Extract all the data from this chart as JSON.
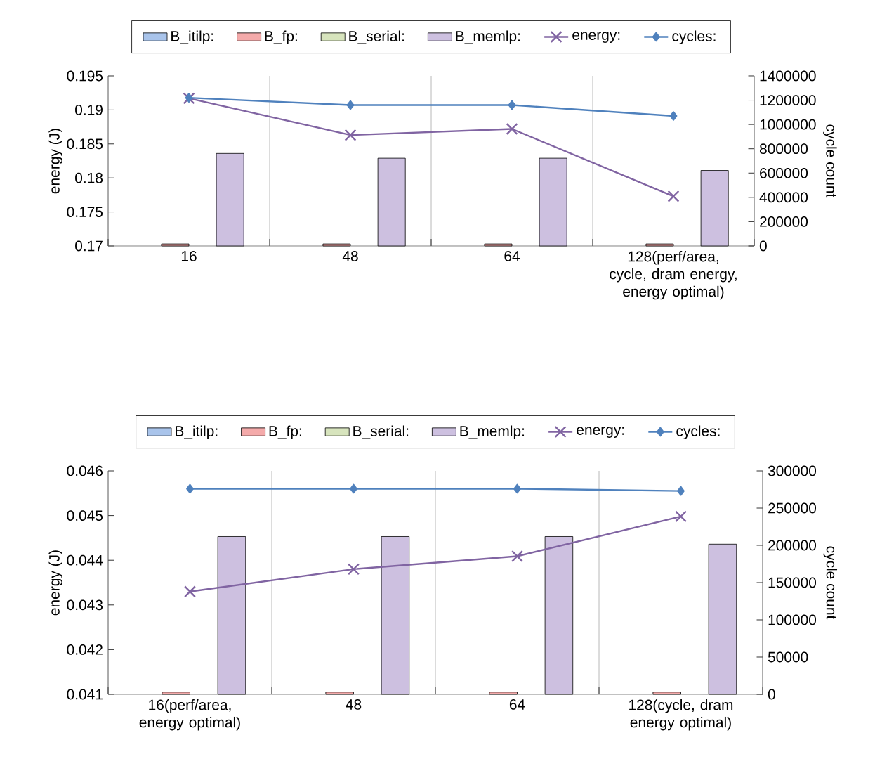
{
  "chart_data": [
    {
      "type": "bar",
      "categories": [
        "16",
        "48",
        "64",
        "128(perf/area, cycle, dram energy, energy optimal)"
      ],
      "ylabel": "energy (J)",
      "y2label": "cycle count",
      "ylim": [
        0.17,
        0.195
      ],
      "yticks": [
        0.17,
        0.175,
        0.18,
        0.185,
        0.19,
        0.195
      ],
      "y2lim": [
        0,
        1400000
      ],
      "y2ticks": [
        0,
        200000,
        400000,
        600000,
        800000,
        1000000,
        1200000,
        1400000
      ],
      "grid": "x",
      "legend": "top",
      "series": [
        {
          "name": "B_itilp:",
          "color": "#a9c4eb",
          "values": [
            null,
            null,
            null,
            null
          ]
        },
        {
          "name": "B_fp:",
          "color": "#f4aaaa",
          "values": [
            0.1703,
            0.1703,
            0.1703,
            0.1703
          ]
        },
        {
          "name": "B_serial:",
          "color": "#d7e4bd",
          "values": [
            null,
            null,
            null,
            null
          ]
        },
        {
          "name": "B_memlp:",
          "color": "#cdc0e0",
          "values": [
            0.1836,
            0.1829,
            0.1829,
            0.1811
          ]
        },
        {
          "name": "energy:",
          "type": "line",
          "marker": "cross",
          "color": "#8064a2",
          "values": [
            0.1917,
            0.1863,
            0.1872,
            0.1773
          ]
        },
        {
          "name": "cycles:",
          "type": "line",
          "marker": "diamond",
          "axis": "y2",
          "color": "#4f81bd",
          "values": [
            1220000,
            1160000,
            1160000,
            1070000
          ]
        }
      ]
    },
    {
      "type": "bar",
      "categories": [
        "16(perf/area, energy optimal)",
        "48",
        "64",
        "128(cycle, dram energy optimal)"
      ],
      "ylabel": "energy (J)",
      "y2label": "cycle count",
      "ylim": [
        0.041,
        0.046
      ],
      "yticks": [
        0.041,
        0.042,
        0.043,
        0.044,
        0.045,
        0.046
      ],
      "y2lim": [
        0,
        300000
      ],
      "y2ticks": [
        0,
        50000,
        100000,
        150000,
        200000,
        250000,
        300000
      ],
      "grid": "x",
      "legend": "top",
      "series": [
        {
          "name": "B_itilp:",
          "color": "#a9c4eb",
          "values": [
            null,
            null,
            null,
            null
          ]
        },
        {
          "name": "B_fp:",
          "color": "#f4aaaa",
          "values": [
            0.04105,
            0.04105,
            0.04105,
            0.04105
          ]
        },
        {
          "name": "B_serial:",
          "color": "#d7e4bd",
          "values": [
            null,
            null,
            null,
            null
          ]
        },
        {
          "name": "B_memlp:",
          "color": "#cdc0e0",
          "values": [
            0.04453,
            0.04453,
            0.04453,
            0.04436
          ]
        },
        {
          "name": "energy:",
          "type": "line",
          "marker": "cross",
          "color": "#8064a2",
          "values": [
            0.0433,
            0.0438,
            0.04409,
            0.04498
          ]
        },
        {
          "name": "cycles:",
          "type": "line",
          "marker": "diamond",
          "axis": "y2",
          "color": "#4f81bd",
          "values": [
            276000,
            276000,
            276000,
            273000
          ]
        }
      ]
    }
  ]
}
